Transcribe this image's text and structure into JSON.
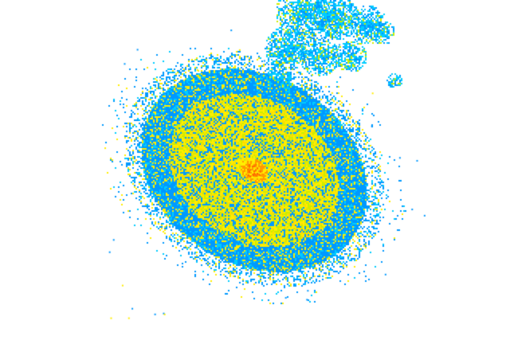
{
  "radar": {
    "colors": {
      "background": "#ffffff",
      "light": "#0099ff",
      "light_cyan": "#00ccff",
      "moderate_green": "#ccee00",
      "moderate": "#ffee00",
      "moderate_gold": "#ffdd00",
      "strong": "#ff9900",
      "very_strong": "#ff6600"
    }
  }
}
